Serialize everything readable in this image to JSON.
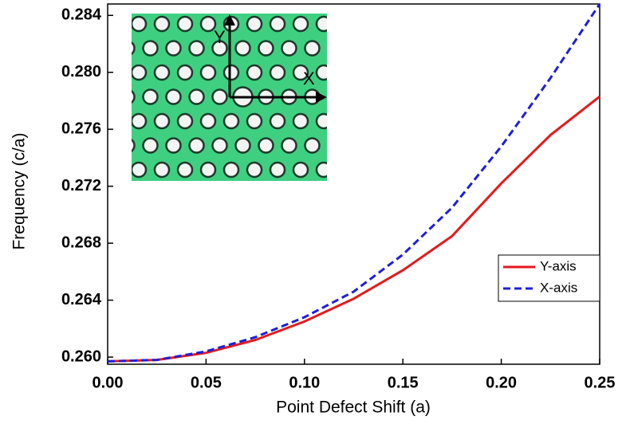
{
  "chart_data": {
    "type": "line",
    "x_label": "Point Defect Shift (a)",
    "y_label": "Frequency (c/a)",
    "x": [
      0,
      0.025,
      0.05,
      0.075,
      0.1,
      0.125,
      0.15,
      0.175,
      0.2,
      0.225,
      0.25
    ],
    "series": [
      {
        "name": "Y-axis",
        "color": "#e41a1c",
        "dash": "solid",
        "values": [
          0.2597,
          0.2598,
          0.2603,
          0.2612,
          0.2625,
          0.2641,
          0.2661,
          0.2685,
          0.2722,
          0.2756,
          0.2783
        ]
      },
      {
        "name": "X-axis",
        "color": "#1f1fd6",
        "dash": "dashed",
        "values": [
          0.2597,
          0.2598,
          0.2604,
          0.2614,
          0.2628,
          0.2646,
          0.2672,
          0.2705,
          0.2748,
          0.2796,
          0.2848
        ]
      }
    ],
    "xlim": [
      0,
      0.25
    ],
    "xticks": [
      {
        "value": 0,
        "label": "0.00"
      },
      0.05,
      {
        "value": 0.1,
        "label": "0.10"
      },
      0.15,
      {
        "value": 0.2,
        "label": "0.20"
      },
      0.25
    ],
    "ylim": [
      0.2595,
      0.2848
    ],
    "yticks": [
      {
        "value": 0.26,
        "label": "0.260"
      },
      0.264,
      0.268,
      0.272,
      0.276,
      {
        "value": 0.28,
        "label": "0.280"
      },
      0.284
    ],
    "legend": "lower-right",
    "annotations": [
      "Y",
      "X"
    ]
  }
}
